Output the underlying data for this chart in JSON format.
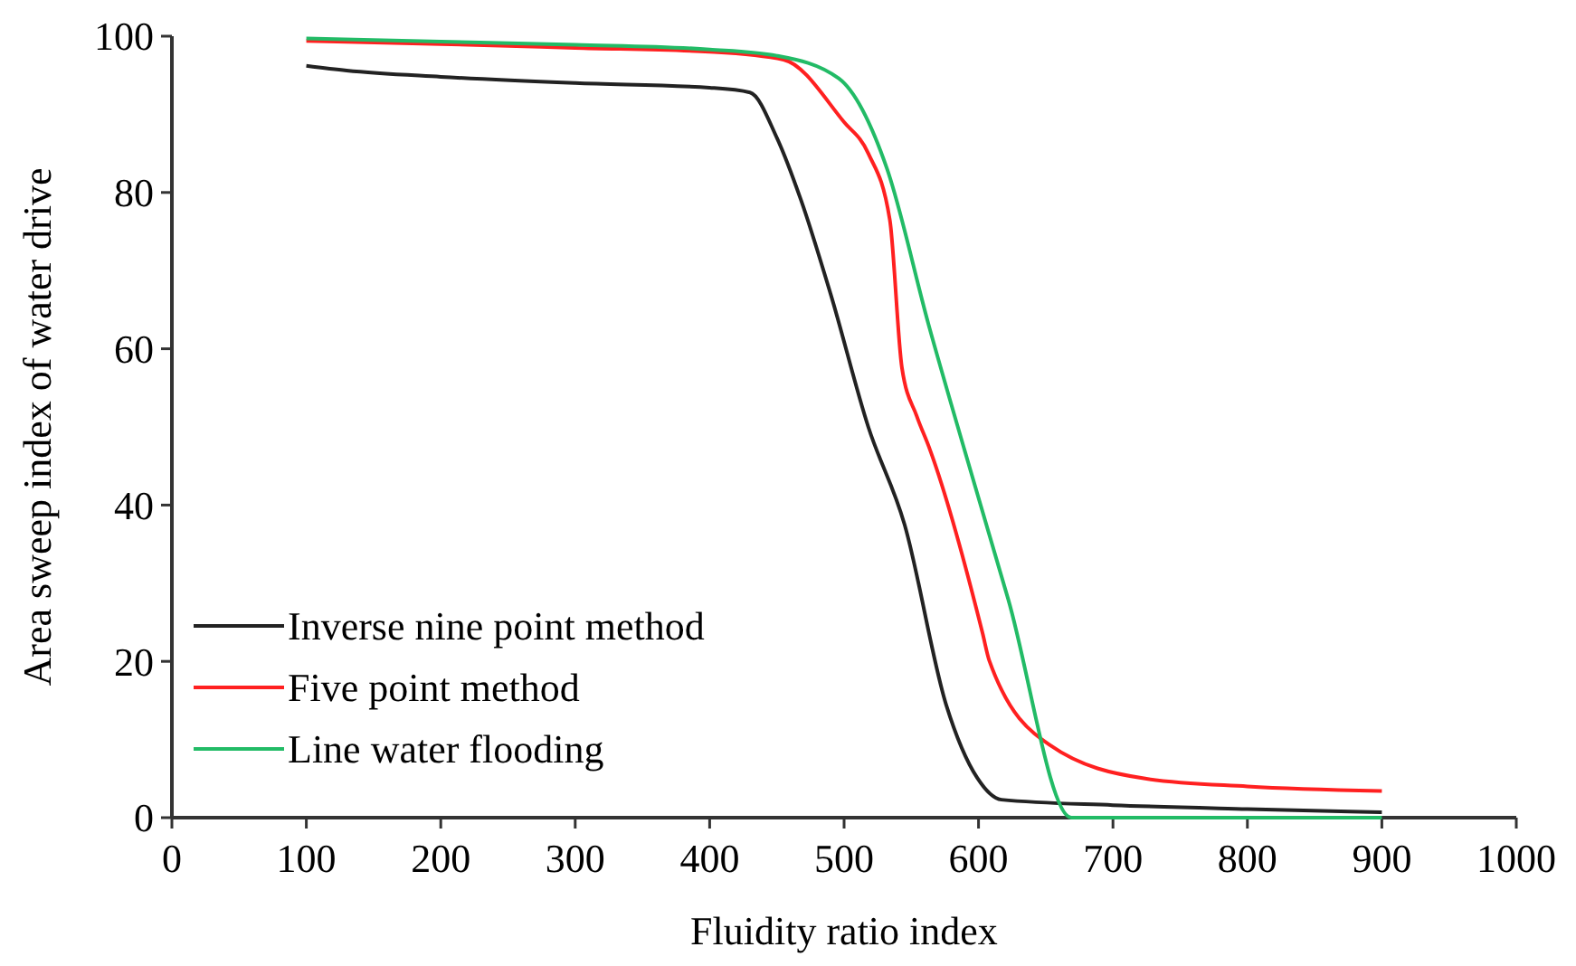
{
  "chart_data": {
    "type": "line",
    "xlabel": "Fluidity ratio index",
    "ylabel": "Area sweep index of water drive",
    "xlim": [
      0,
      1000
    ],
    "xticks": [
      0,
      100,
      200,
      300,
      400,
      500,
      600,
      700,
      800,
      900,
      1000
    ],
    "ylim": [
      0,
      100
    ],
    "yticks": [
      0,
      20,
      40,
      60,
      80,
      100
    ],
    "grid": false,
    "legend": "bottom left",
    "marker": "none",
    "line_style": "solid",
    "series": [
      {
        "name": "Inverse nine point method",
        "color": "#222222",
        "x": [
          100,
          130,
          200,
          300,
          400,
          430,
          450,
          468,
          490,
          518,
          545,
          576,
          599,
          617,
          700,
          800,
          900
        ],
        "values": [
          96.2,
          95.6,
          94.8,
          94,
          93.4,
          92.8,
          87,
          79,
          67,
          50,
          37.5,
          14.4,
          5.1,
          2.3,
          1.6,
          1.1,
          0.7
        ]
      },
      {
        "name": "Five point method",
        "color": "#ff2020",
        "x": [
          100,
          200,
          300,
          400,
          455,
          500,
          518,
          534,
          543,
          554,
          563,
          603,
          608,
          653,
          724,
          800,
          900
        ],
        "values": [
          99.4,
          99,
          98.5,
          98,
          97,
          89,
          85,
          76.5,
          57.6,
          51.4,
          47.5,
          23.6,
          20.1,
          9.3,
          5,
          4,
          3.4
        ]
      },
      {
        "name": "Line water flooding",
        "color": "#22bb66",
        "x": [
          100,
          200,
          300,
          400,
          450,
          496,
          532,
          563,
          590,
          622,
          669,
          700,
          800,
          900
        ],
        "values": [
          99.7,
          99.3,
          98.9,
          98.3,
          97.5,
          94.6,
          83,
          63,
          46.8,
          28,
          0,
          0,
          0,
          0
        ]
      }
    ]
  }
}
